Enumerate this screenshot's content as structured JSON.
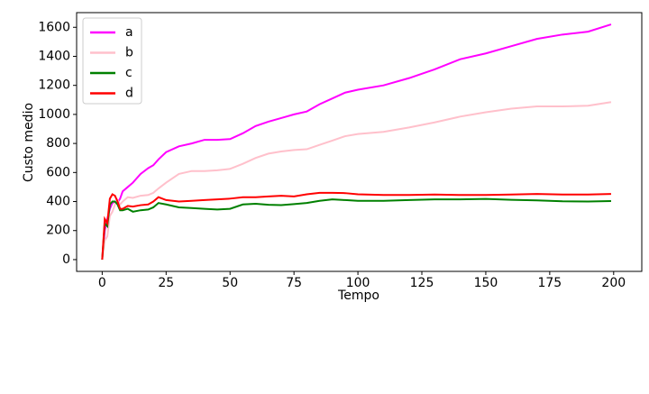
{
  "chart_data": {
    "type": "line",
    "xlabel": "Tempo",
    "ylabel": "Custo medio",
    "x": [
      0,
      1,
      2,
      3,
      4,
      5,
      6,
      7,
      8,
      10,
      12,
      15,
      18,
      20,
      22,
      25,
      30,
      35,
      40,
      45,
      50,
      55,
      60,
      65,
      70,
      75,
      80,
      85,
      90,
      95,
      100,
      110,
      120,
      130,
      140,
      150,
      160,
      170,
      180,
      190,
      199
    ],
    "series": [
      {
        "name": "a",
        "color": "#ff00ff",
        "values": [
          0,
          200,
          280,
          350,
          390,
          400,
          390,
          420,
          470,
          500,
          530,
          590,
          630,
          650,
          690,
          740,
          780,
          800,
          825,
          825,
          830,
          870,
          920,
          950,
          975,
          1000,
          1020,
          1070,
          1110,
          1150,
          1170,
          1200,
          1250,
          1310,
          1380,
          1420,
          1470,
          1520,
          1550,
          1570,
          1620
        ]
      },
      {
        "name": "b",
        "color": "#ffc0cb",
        "values": [
          0,
          130,
          160,
          300,
          330,
          380,
          410,
          380,
          400,
          430,
          425,
          440,
          445,
          460,
          490,
          530,
          590,
          610,
          610,
          615,
          625,
          660,
          700,
          730,
          745,
          755,
          760,
          790,
          820,
          850,
          865,
          880,
          910,
          945,
          985,
          1015,
          1040,
          1055,
          1055,
          1060,
          1085
        ]
      },
      {
        "name": "c",
        "color": "#008000",
        "values": [
          0,
          250,
          230,
          380,
          400,
          400,
          380,
          340,
          340,
          350,
          330,
          340,
          345,
          360,
          390,
          380,
          360,
          355,
          350,
          345,
          350,
          380,
          385,
          378,
          375,
          382,
          390,
          405,
          415,
          410,
          405,
          405,
          410,
          415,
          415,
          418,
          412,
          408,
          402,
          400,
          403
        ]
      },
      {
        "name": "d",
        "color": "#ff0000",
        "values": [
          0,
          280,
          250,
          420,
          450,
          440,
          400,
          350,
          350,
          370,
          365,
          375,
          380,
          400,
          430,
          410,
          400,
          405,
          410,
          415,
          420,
          430,
          430,
          435,
          440,
          435,
          450,
          460,
          460,
          458,
          450,
          445,
          445,
          448,
          445,
          445,
          448,
          452,
          448,
          448,
          452
        ]
      }
    ],
    "xlim": [
      -10,
      211
    ],
    "ylim": [
      -81,
      1701
    ],
    "xticks": [
      0,
      25,
      50,
      75,
      100,
      125,
      150,
      175,
      200
    ],
    "yticks": [
      0,
      200,
      400,
      600,
      800,
      1000,
      1200,
      1400,
      1600
    ],
    "legend": "upper left"
  }
}
